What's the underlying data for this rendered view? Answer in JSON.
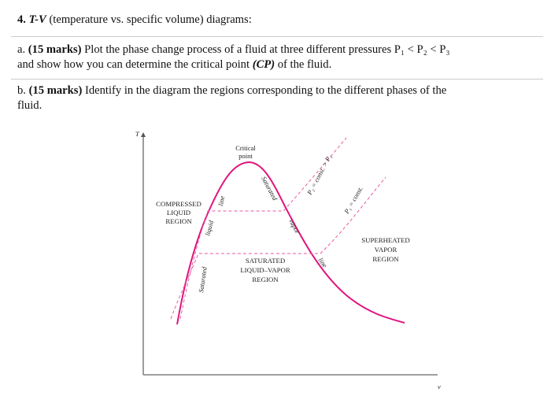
{
  "question": {
    "number": "4.",
    "title_italic": "T-V",
    "title_rest": "(temperature vs. specific volume) diagrams:"
  },
  "part_a": {
    "label": "a.",
    "marks": "(15 marks)",
    "line_1": "Plot the phase change process of a fluid at three different pressures P₁ < P₂ < P₃",
    "line_2_start": "and show how you can determine the critical point",
    "cp": "(CP)",
    "line_2_end": "of the fluid."
  },
  "part_b": {
    "label": "b.",
    "marks": "(15 marks)",
    "line_1": "Identify in the diagram the regions corresponding to the different phases of the",
    "line_2": "fluid."
  },
  "diagram": {
    "y_axis_label": "T",
    "x_axis_label": "v",
    "critical_point": [
      "Critical",
      "point"
    ],
    "compressed_region": [
      "COMPRESSED",
      "LIQUID",
      "REGION"
    ],
    "saturated_region": [
      "SATURATED",
      "LIQUID–VAPOR",
      "REGION"
    ],
    "superheated_region": [
      "SUPERHEATED",
      "VAPOR",
      "REGION"
    ],
    "saturated_liquid_line": [
      "Saturated",
      "liquid",
      "line"
    ],
    "saturated_vapor_line": [
      "Saturated",
      "vapor",
      "line"
    ],
    "p2_label": "P₂ = const. > P₁",
    "p1_label": "P₁ = const."
  }
}
